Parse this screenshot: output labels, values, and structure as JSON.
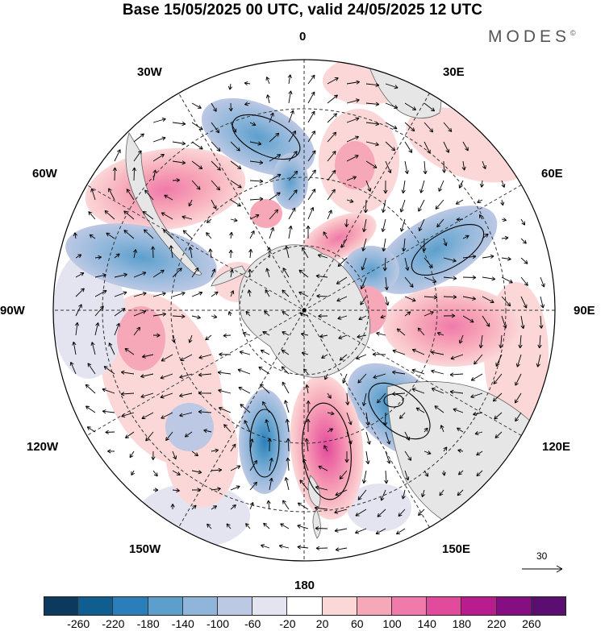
{
  "header": {
    "title": "Base 15/05/2025 00 UTC, valid 24/05/2025 12 UTC",
    "brand": "MODES",
    "brand_mark": "©"
  },
  "map": {
    "projection": "south-polar-stereographic",
    "longitude_labels": [
      {
        "id": "lon-0",
        "text": "0",
        "lon": 0
      },
      {
        "id": "lon-30e",
        "text": "30E",
        "lon": 30
      },
      {
        "id": "lon-60e",
        "text": "60E",
        "lon": 60
      },
      {
        "id": "lon-90e",
        "text": "90E",
        "lon": 90
      },
      {
        "id": "lon-120e",
        "text": "120E",
        "lon": 120
      },
      {
        "id": "lon-150e",
        "text": "150E",
        "lon": 150
      },
      {
        "id": "lon-180",
        "text": "180",
        "lon": 180
      },
      {
        "id": "lon-150w",
        "text": "150W",
        "lon": -150
      },
      {
        "id": "lon-120w",
        "text": "120W",
        "lon": -120
      },
      {
        "id": "lon-90w",
        "text": "90W",
        "lon": -90
      },
      {
        "id": "lon-60w",
        "text": "60W",
        "lon": -60
      },
      {
        "id": "lon-30w",
        "text": "30W",
        "lon": -30
      }
    ],
    "reference_vector": {
      "value": "30"
    },
    "colors": {
      "land": "#e6e6e6",
      "coastline": "#666666",
      "grid": "#333333"
    }
  },
  "colorbar": {
    "labels": [
      "-260",
      "-220",
      "-180",
      "-140",
      "-100",
      "-60",
      "-20",
      "20",
      "60",
      "100",
      "140",
      "180",
      "220",
      "260"
    ],
    "colors": [
      "#0b3a5e",
      "#105d8f",
      "#2a7fba",
      "#5c9fcc",
      "#8fb6da",
      "#bcc8e4",
      "#e4e4f1",
      "#ffffff",
      "#fbd7d8",
      "#f7a8b8",
      "#f07aaa",
      "#e24a9c",
      "#b91c8c",
      "#850f82",
      "#5a0e70"
    ]
  }
}
